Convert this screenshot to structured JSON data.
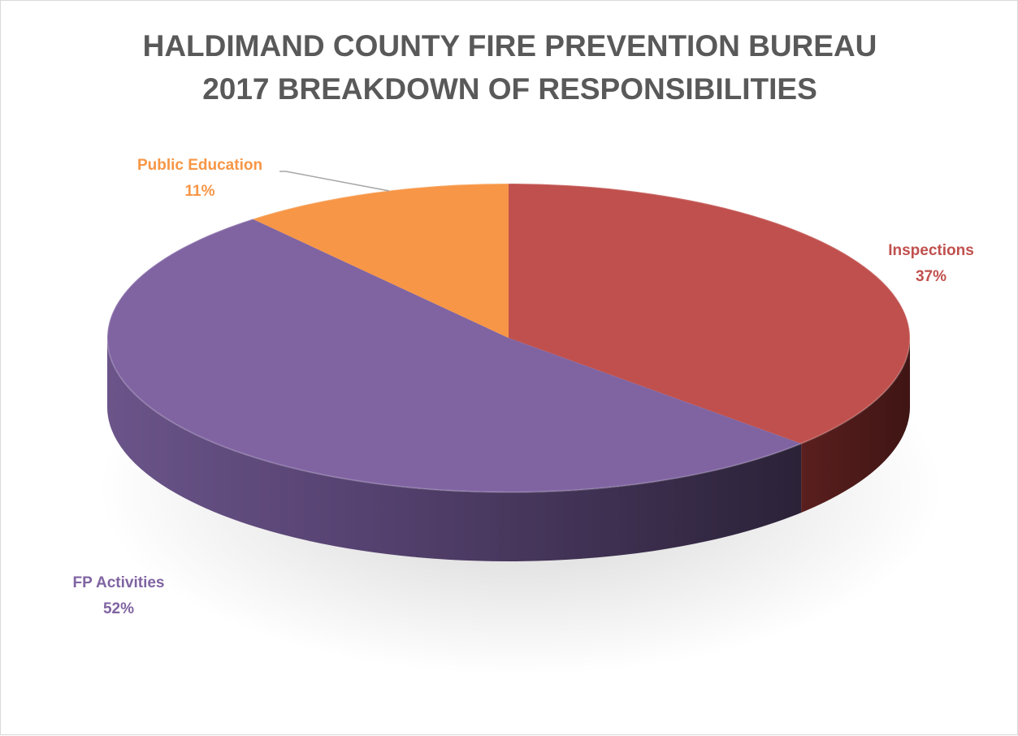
{
  "chart_data": {
    "type": "pie",
    "style": "3d",
    "title": "HALDIMAND COUNTY FIRE PREVENTION BUREAU",
    "subtitle": "2017 BREAKDOWN OF RESPONSIBILITIES",
    "legend": "none",
    "slices": [
      {
        "label": "Inspections",
        "value": 37,
        "display": "37%",
        "color": "#c0504d"
      },
      {
        "label": "FP Activities",
        "value": 52,
        "display": "52%",
        "color": "#8064a2"
      },
      {
        "label": "Public Education",
        "value": 11,
        "display": "11%",
        "color": "#f79646"
      }
    ]
  }
}
